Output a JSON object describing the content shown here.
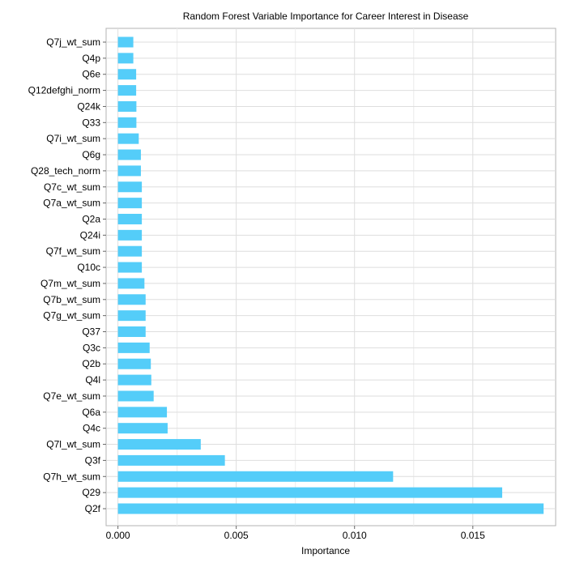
{
  "chart_data": {
    "type": "bar",
    "orientation": "horizontal",
    "title": "Random Forest Variable Importance for Career Interest in Disease",
    "xlabel": "Importance",
    "ylabel": "",
    "xlim": [
      -0.0005,
      0.0185
    ],
    "xticks": [
      0.0,
      0.005,
      0.01,
      0.015
    ],
    "xtick_labels": [
      "0.000",
      "0.005",
      "0.010",
      "0.015"
    ],
    "grid": true,
    "bar_color": "#54cdf9",
    "categories": [
      "Q7j_wt_sum",
      "Q4p",
      "Q6e",
      "Q12defghi_norm",
      "Q24k",
      "Q33",
      "Q7i_wt_sum",
      "Q6g",
      "Q28_tech_norm",
      "Q7c_wt_sum",
      "Q7a_wt_sum",
      "Q2a",
      "Q24i",
      "Q7f_wt_sum",
      "Q10c",
      "Q7m_wt_sum",
      "Q7b_wt_sum",
      "Q7g_wt_sum",
      "Q37",
      "Q3c",
      "Q2b",
      "Q4l",
      "Q7e_wt_sum",
      "Q6a",
      "Q4c",
      "Q7l_wt_sum",
      "Q3f",
      "Q7h_wt_sum",
      "Q29",
      "Q2f"
    ],
    "values": [
      0.00065,
      0.00065,
      0.00077,
      0.00077,
      0.00078,
      0.00078,
      0.00088,
      0.00097,
      0.00097,
      0.00101,
      0.00101,
      0.00101,
      0.00101,
      0.00101,
      0.00101,
      0.00112,
      0.00117,
      0.00117,
      0.00117,
      0.00134,
      0.00139,
      0.00141,
      0.00151,
      0.00207,
      0.0021,
      0.0035,
      0.00452,
      0.01163,
      0.01624,
      0.01799
    ]
  }
}
